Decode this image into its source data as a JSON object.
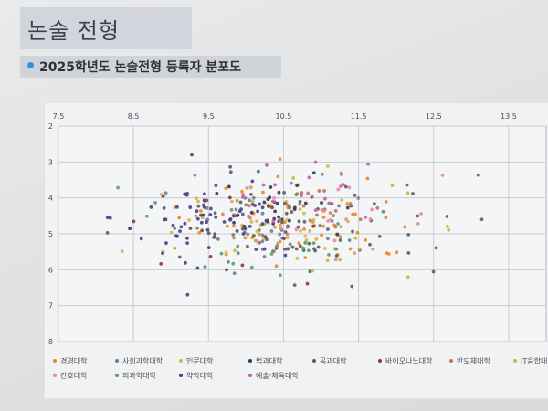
{
  "page": {
    "title": "논술 전형",
    "subtitle": "2025학년도 논술전형 등록자 분포도"
  },
  "chart_data": {
    "type": "scatter",
    "title": "",
    "xlabel": "",
    "ylabel": "",
    "xlim": [
      7.5,
      14.0
    ],
    "ylim": [
      2,
      8
    ],
    "y_inverted": true,
    "grid": true,
    "legend_placement": "bottom",
    "x_ticks": [
      "7.5",
      "8.5",
      "9.5",
      "10.5",
      "11.5",
      "12.5",
      "13.5"
    ],
    "y_ticks": [
      "2",
      "3",
      "4",
      "5",
      "6",
      "7",
      "8"
    ],
    "series": [
      {
        "name": "경영대학",
        "color": "#e8892c",
        "center": [
          10.7,
          4.6
        ],
        "spread": [
          1.0,
          0.8
        ],
        "count": 70
      },
      {
        "name": "사회과학대학",
        "color": "#6d7f93",
        "center": [
          10.3,
          4.7
        ],
        "spread": [
          0.9,
          0.7
        ],
        "count": 40
      },
      {
        "name": "인문대학",
        "color": "#d9b44a",
        "center": [
          10.0,
          4.8
        ],
        "spread": [
          0.9,
          0.8
        ],
        "count": 40
      },
      {
        "name": "법과대학",
        "color": "#2f3b4c",
        "center": [
          10.4,
          4.3
        ],
        "spread": [
          0.7,
          0.6
        ],
        "count": 30
      },
      {
        "name": "공과대학",
        "color": "#5b5e66",
        "center": [
          10.7,
          4.8
        ],
        "spread": [
          1.1,
          0.9
        ],
        "count": 70
      },
      {
        "name": "바이오나노대학",
        "color": "#8a3a3a",
        "center": [
          10.1,
          4.9
        ],
        "spread": [
          1.0,
          0.8
        ],
        "count": 20
      },
      {
        "name": "반도체대학",
        "color": "#b07a55",
        "center": [
          11.0,
          4.4
        ],
        "spread": [
          0.7,
          0.6
        ],
        "count": 15
      },
      {
        "name": "IT융합대학",
        "color": "#b9c23a",
        "center": [
          11.4,
          4.8
        ],
        "spread": [
          1.0,
          0.8
        ],
        "count": 15
      },
      {
        "name": "간호대학",
        "color": "#e98aa0",
        "center": [
          11.0,
          4.6
        ],
        "spread": [
          0.9,
          0.6
        ],
        "count": 20
      },
      {
        "name": "의과학대학",
        "color": "#5a9e6a",
        "center": [
          10.2,
          4.9
        ],
        "spread": [
          1.2,
          0.8
        ],
        "count": 20
      },
      {
        "name": "약학대학",
        "color": "#4b3f8c",
        "center": [
          9.5,
          4.6
        ],
        "spread": [
          0.8,
          0.8
        ],
        "count": 60
      },
      {
        "name": "예술·체육대학",
        "color": "#c45fb0",
        "center": [
          10.8,
          3.8
        ],
        "spread": [
          0.7,
          0.6
        ],
        "count": 25
      }
    ]
  }
}
